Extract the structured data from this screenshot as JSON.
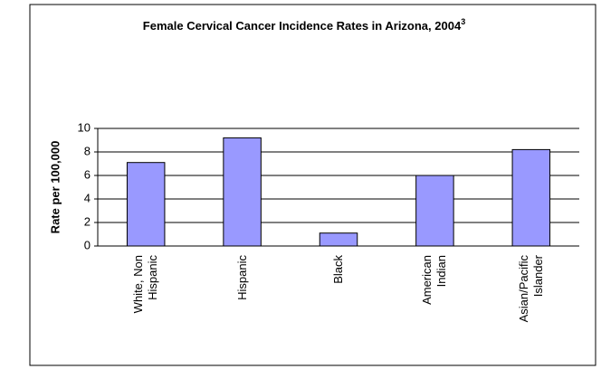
{
  "chart_data": {
    "type": "bar",
    "title": "Female Cervical Cancer Incidence Rates in Arizona, 2004",
    "title_superscript": "3",
    "y_label": "Rate per 100,000",
    "categories": [
      "White, Non Hispanic",
      "Hispanic",
      "Black",
      "American Indian",
      "Asian/Pacific Islander"
    ],
    "values": [
      7.1,
      9.2,
      1.1,
      6.0,
      8.2
    ],
    "color": "#9999ff",
    "ylim": [
      0,
      10
    ],
    "yticks": [
      0,
      2,
      4,
      6,
      8,
      10
    ],
    "grid": true
  }
}
